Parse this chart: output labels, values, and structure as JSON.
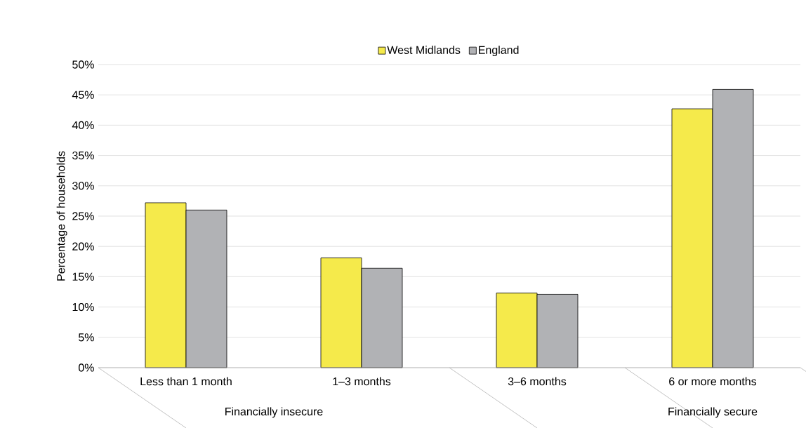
{
  "chart_data": {
    "type": "bar",
    "ylabel": "Percentage of households",
    "categories": [
      "Less than 1 month",
      "1–3 months",
      "3–6 months",
      "6 or more months"
    ],
    "series": [
      {
        "name": "West Midlands",
        "color": "#f5ea4b",
        "values": [
          27.2,
          18.1,
          12.3,
          42.7
        ]
      },
      {
        "name": "England",
        "color": "#b1b2b5",
        "values": [
          26.0,
          16.4,
          12.1,
          45.9
        ]
      }
    ],
    "ylim": [
      0,
      50
    ],
    "yticks": [
      {
        "value": 0,
        "label": "0%"
      },
      {
        "value": 5,
        "label": "5%"
      },
      {
        "value": 10,
        "label": "10%"
      },
      {
        "value": 15,
        "label": "15%"
      },
      {
        "value": 20,
        "label": "20%"
      },
      {
        "value": 25,
        "label": "25%"
      },
      {
        "value": 30,
        "label": "30%"
      },
      {
        "value": 35,
        "label": "35%"
      },
      {
        "value": 40,
        "label": "40%"
      },
      {
        "value": 45,
        "label": "45%"
      },
      {
        "value": 50,
        "label": "50%"
      }
    ],
    "grid": "y",
    "legend": "top",
    "annotations": [
      "Financially insecure",
      "Financially secure"
    ]
  }
}
